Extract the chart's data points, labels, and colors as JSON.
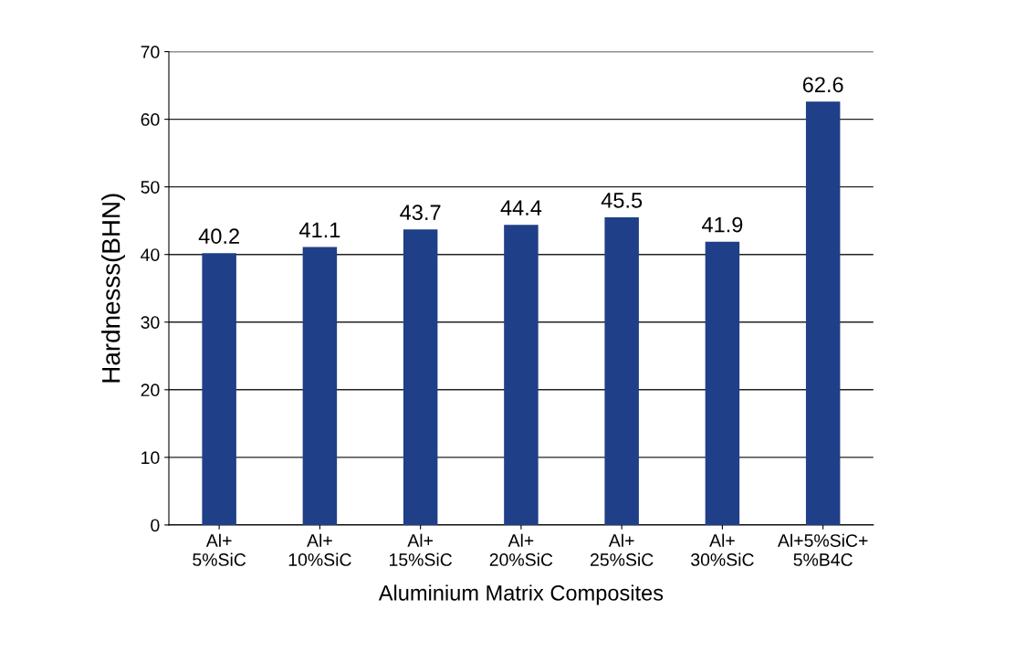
{
  "chart_data": {
    "type": "bar",
    "xlabel": "Aluminium Matrix Composites",
    "ylabel": "Hardnesss(BHN)",
    "categories": [
      "Al+\n5%SiC",
      "Al+\n10%SiC",
      "Al+\n15%SiC",
      "Al+\n20%SiC",
      "Al+\n25%SiC",
      "Al+\n30%SiC",
      "Al+5%SiC+\n5%B4C"
    ],
    "values": [
      40.2,
      41.1,
      43.7,
      44.4,
      45.5,
      41.9,
      62.6
    ],
    "color": "#1f3f88",
    "ylim": [
      0,
      70
    ],
    "yticks": [
      0,
      10,
      20,
      30,
      40,
      50,
      60,
      70
    ],
    "grid": "y",
    "data_labels": true
  }
}
